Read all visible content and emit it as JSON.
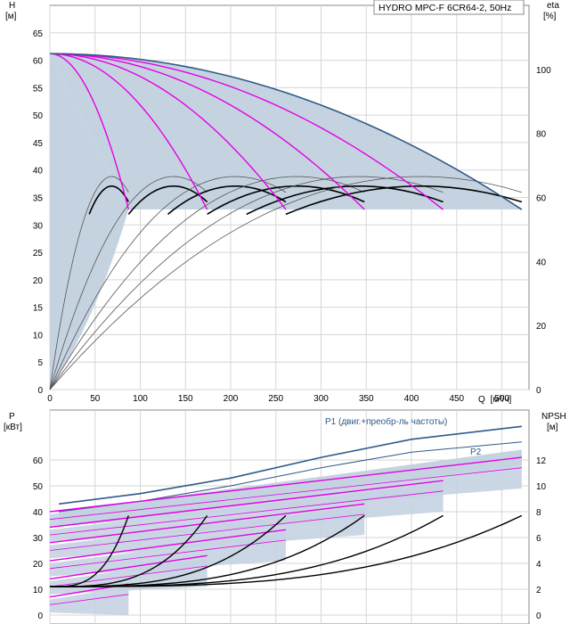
{
  "chart_data": [
    {
      "type": "line",
      "id": "head-efficiency",
      "title": "HYDRO MPC-F 6CR64-2, 50Hz",
      "ylabel": "H",
      "yunit": "[м]",
      "y2label": "eta",
      "y2unit": "[%]",
      "xlabel": "Q",
      "xunit": "[м³/ч]",
      "xlim": [
        0,
        530
      ],
      "ylim": [
        0,
        70
      ],
      "y2lim": [
        0,
        120
      ],
      "xticks": [
        0,
        50,
        100,
        150,
        200,
        250,
        300,
        350,
        400,
        450,
        500
      ],
      "yticks": [
        0,
        5,
        10,
        15,
        20,
        25,
        30,
        35,
        40,
        45,
        50,
        55,
        60,
        65
      ],
      "y2ticks": [
        0,
        20,
        40,
        60,
        80,
        100
      ],
      "grid": true,
      "colors": {
        "outer": "#2f5a88",
        "curves": "#e400e4",
        "area": "#c5d3e1",
        "eff": "#000000"
      },
      "shut_off_head": 61.2,
      "min_head": 32.8,
      "outer_curve": {
        "x": [
          0,
          60,
          120,
          180,
          240,
          300,
          360,
          420,
          470,
          510,
          522
        ],
        "y": [
          61.2,
          60.6,
          58.9,
          56.1,
          52.3,
          47.6,
          42.4,
          36.8,
          35.2,
          33.6,
          32.8
        ]
      },
      "head_curves": [
        {
          "end_q": 87
        },
        {
          "end_q": 174
        },
        {
          "end_q": 261
        },
        {
          "end_q": 348
        },
        {
          "end_q": 435
        },
        {
          "end_q": 522
        }
      ],
      "efficiency_curves": [
        {
          "x": [
            0,
            20,
            40,
            60,
            80,
            87
          ],
          "y": [
            0,
            45,
            70,
            79,
            72,
            63
          ]
        },
        {
          "x": [
            0,
            40,
            80,
            120,
            160,
            174
          ],
          "y": [
            0,
            45,
            70,
            79,
            72,
            63
          ]
        },
        {
          "x": [
            0,
            60,
            120,
            180,
            240,
            261
          ],
          "y": [
            0,
            45,
            70,
            79,
            72,
            63
          ]
        },
        {
          "x": [
            0,
            80,
            160,
            240,
            320,
            348
          ],
          "y": [
            0,
            45,
            70,
            79,
            72,
            63
          ]
        },
        {
          "x": [
            0,
            100,
            200,
            300,
            400,
            435
          ],
          "y": [
            0,
            45,
            70,
            79,
            72,
            63
          ]
        },
        {
          "x": [
            0,
            120,
            240,
            360,
            480,
            522
          ],
          "y": [
            0,
            45,
            70,
            79,
            72,
            63
          ]
        }
      ]
    },
    {
      "type": "line",
      "id": "power-npsh",
      "ylabel": "P",
      "yunit": "[кВт]",
      "y2label": "NPSH",
      "y2unit": "[м]",
      "xlim": [
        0,
        530
      ],
      "ylim": [
        0,
        70
      ],
      "y2lim": [
        0,
        14
      ],
      "yticks": [
        0,
        10,
        20,
        30,
        40,
        50,
        60
      ],
      "y2ticks": [
        0,
        2,
        4,
        6,
        8,
        10,
        12
      ],
      "grid": true,
      "series": [
        {
          "name": "P1 (двиг.+преобр-ль частоты)",
          "x": [
            10,
            100,
            200,
            300,
            400,
            522
          ],
          "y": [
            43,
            47,
            53,
            61,
            68,
            73
          ]
        },
        {
          "name": "P2",
          "x": [
            10,
            100,
            200,
            300,
            400,
            522
          ],
          "y": [
            40,
            44,
            50,
            57,
            63,
            67
          ]
        }
      ],
      "power_curves": [
        {
          "x": [
            0,
            87
          ],
          "y": [
            7,
            12
          ]
        },
        {
          "x": [
            0,
            174
          ],
          "y": [
            14,
            23
          ]
        },
        {
          "x": [
            0,
            261
          ],
          "y": [
            21,
            33
          ]
        },
        {
          "x": [
            0,
            348
          ],
          "y": [
            28,
            43
          ]
        },
        {
          "x": [
            0,
            435
          ],
          "y": [
            34,
            52
          ]
        },
        {
          "x": [
            0,
            522
          ],
          "y": [
            40,
            61
          ]
        }
      ],
      "npsh_curves": [
        {
          "end_q": 87,
          "end_npsh": 7.7
        },
        {
          "end_q": 174,
          "end_npsh": 7.7
        },
        {
          "end_q": 261,
          "end_npsh": 7.7
        },
        {
          "end_q": 348,
          "end_npsh": 7.7
        },
        {
          "end_q": 435,
          "end_npsh": 7.7
        },
        {
          "end_q": 522,
          "end_npsh": 7.7
        }
      ],
      "npsh_base": 2.2
    }
  ]
}
